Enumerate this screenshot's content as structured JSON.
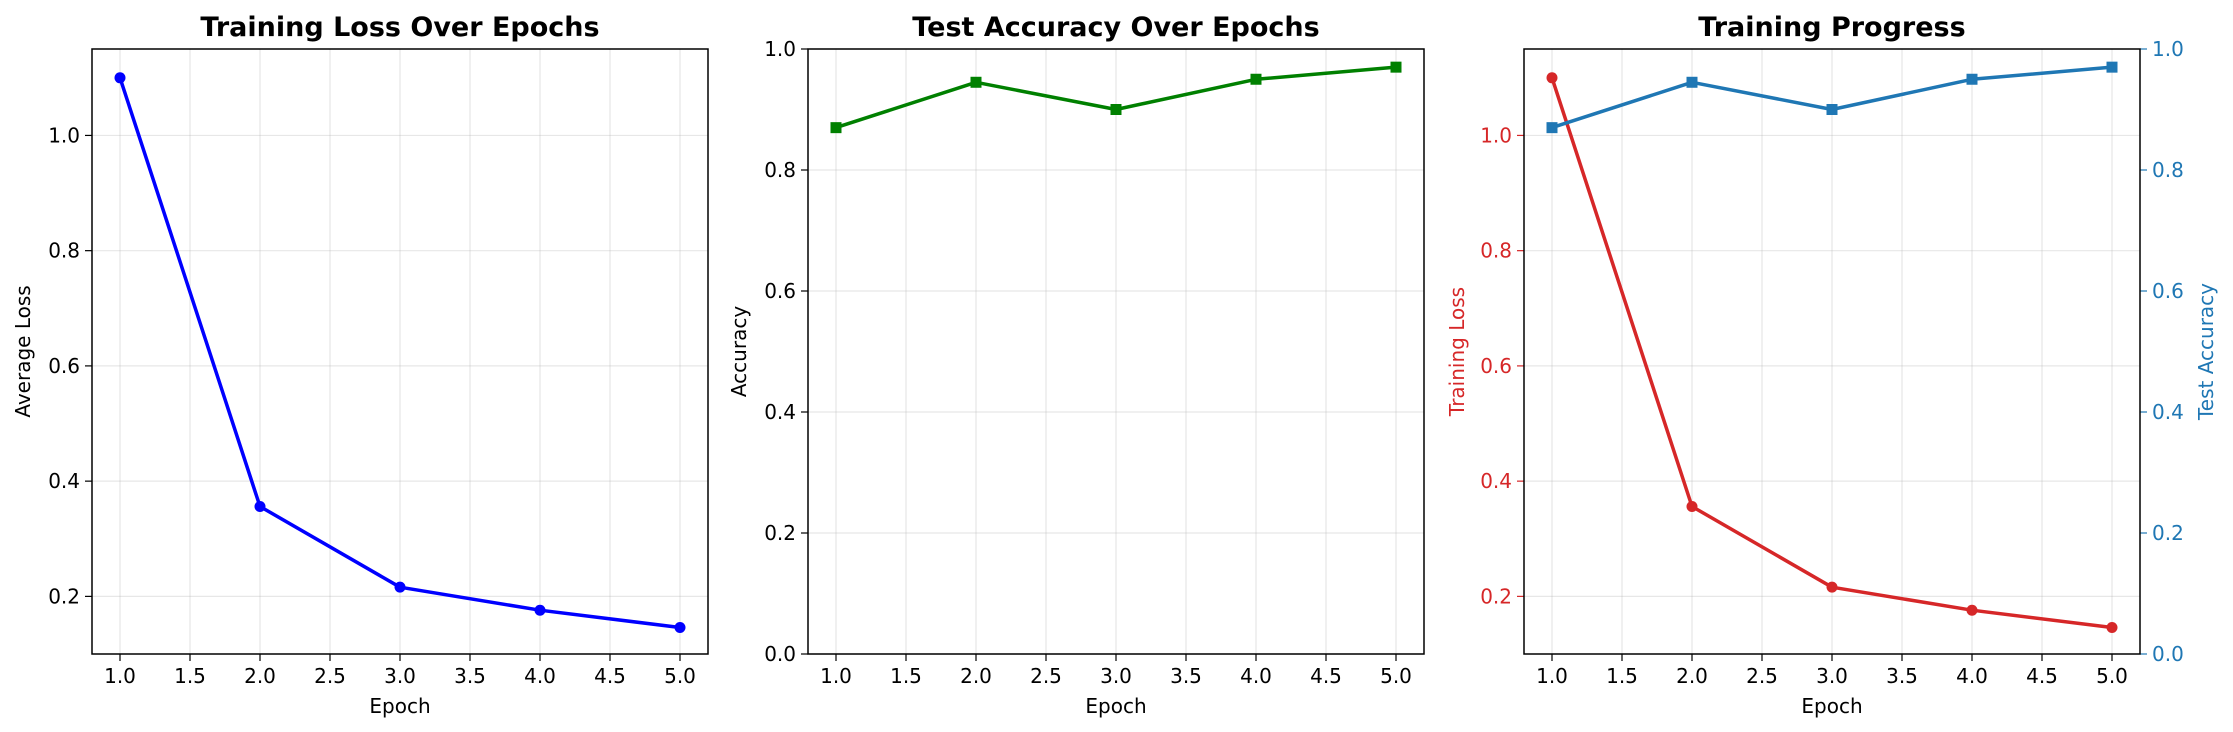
{
  "chart_data": [
    {
      "type": "line",
      "title": "Training Loss Over Epochs",
      "xlabel": "Epoch",
      "ylabel": "Average Loss",
      "x": [
        1,
        2,
        3,
        4,
        5
      ],
      "xlim": [
        0.8,
        5.2
      ],
      "ylim": [
        0.1,
        1.15
      ],
      "xticks": [
        "1.0",
        "1.5",
        "2.0",
        "2.5",
        "3.0",
        "3.5",
        "4.0",
        "4.5",
        "5.0"
      ],
      "yticks": [
        "0.2",
        "0.4",
        "0.6",
        "0.8",
        "1.0"
      ],
      "grid": true,
      "series": [
        {
          "values": [
            1.1,
            0.356,
            0.216,
            0.176,
            0.146
          ],
          "color": "#0000ff",
          "marker": "circle",
          "axis": "left"
        }
      ]
    },
    {
      "type": "line",
      "title": "Test Accuracy Over Epochs",
      "xlabel": "Epoch",
      "ylabel": "Accuracy",
      "x": [
        1,
        2,
        3,
        4,
        5
      ],
      "xlim": [
        0.8,
        5.2
      ],
      "ylim": [
        0,
        1
      ],
      "xticks": [
        "1.0",
        "1.5",
        "2.0",
        "2.5",
        "3.0",
        "3.5",
        "4.0",
        "4.5",
        "5.0"
      ],
      "yticks": [
        "0.0",
        "0.2",
        "0.4",
        "0.6",
        "0.8",
        "1.0"
      ],
      "grid": true,
      "series": [
        {
          "values": [
            0.87,
            0.945,
            0.9,
            0.95,
            0.97
          ],
          "color": "#008000",
          "marker": "square",
          "axis": "left"
        }
      ]
    },
    {
      "type": "line",
      "title": "Training Progress",
      "xlabel": "Epoch",
      "ylabel": "Training Loss",
      "ylabel_right": "Test Accuracy",
      "x": [
        1,
        2,
        3,
        4,
        5
      ],
      "xlim": [
        0.8,
        5.2
      ],
      "ylim": [
        0.1,
        1.15
      ],
      "ylim_right": [
        0,
        1
      ],
      "xticks": [
        "1.0",
        "1.5",
        "2.0",
        "2.5",
        "3.0",
        "3.5",
        "4.0",
        "4.5",
        "5.0"
      ],
      "yticks": [
        "0.2",
        "0.4",
        "0.6",
        "0.8",
        "1.0"
      ],
      "yticks_right": [
        "0.0",
        "0.2",
        "0.4",
        "0.6",
        "0.8",
        "1.0"
      ],
      "grid": true,
      "left_color": "#d62728",
      "right_color": "#1f77b4",
      "series": [
        {
          "values": [
            1.1,
            0.356,
            0.216,
            0.176,
            0.146
          ],
          "color": "#d62728",
          "marker": "circle",
          "axis": "left"
        },
        {
          "values": [
            0.87,
            0.945,
            0.9,
            0.95,
            0.97
          ],
          "color": "#1f77b4",
          "marker": "square",
          "axis": "right"
        }
      ]
    }
  ]
}
